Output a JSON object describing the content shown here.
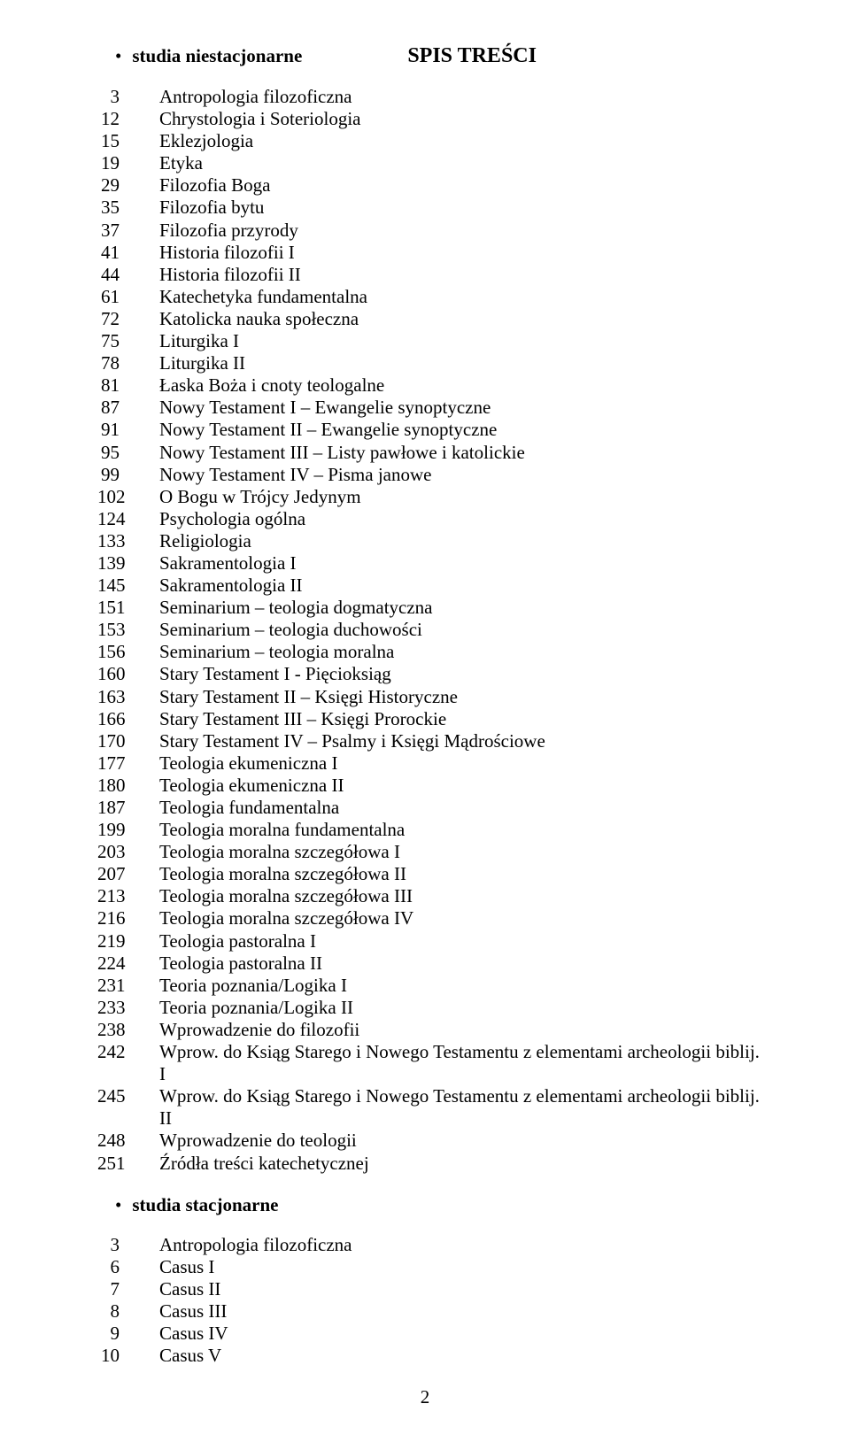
{
  "title": "SPIS TREŚCI",
  "section1_label": "studia niestacjonarne",
  "section2_label": "studia stacjonarne",
  "page_number": "2",
  "toc1": [
    {
      "num": "3",
      "title": "Antropologia filozoficzna"
    },
    {
      "num": "12",
      "title": "Chrystologia i Soteriologia"
    },
    {
      "num": "15",
      "title": "Eklezjologia"
    },
    {
      "num": "19",
      "title": "Etyka"
    },
    {
      "num": "29",
      "title": "Filozofia Boga"
    },
    {
      "num": "35",
      "title": "Filozofia bytu"
    },
    {
      "num": "37",
      "title": "Filozofia przyrody"
    },
    {
      "num": "41",
      "title": "Historia filozofii I"
    },
    {
      "num": "44",
      "title": "Historia filozofii II"
    },
    {
      "num": "61",
      "title": "Katechetyka fundamentalna"
    },
    {
      "num": "72",
      "title": "Katolicka nauka społeczna"
    },
    {
      "num": "75",
      "title": "Liturgika I"
    },
    {
      "num": "78",
      "title": "Liturgika II"
    },
    {
      "num": "81",
      "title": "Łaska Boża i cnoty teologalne"
    },
    {
      "num": "87",
      "title": "Nowy Testament I – Ewangelie synoptyczne"
    },
    {
      "num": "91",
      "title": "Nowy Testament II – Ewangelie synoptyczne"
    },
    {
      "num": "95",
      "title": "Nowy Testament III – Listy pawłowe i katolickie"
    },
    {
      "num": "99",
      "title": "Nowy Testament IV – Pisma janowe"
    },
    {
      "num": "102",
      "title": "O Bogu w Trójcy Jedynym"
    },
    {
      "num": "124",
      "title": "Psychologia ogólna"
    },
    {
      "num": "133",
      "title": "Religiologia"
    },
    {
      "num": "139",
      "title": "Sakramentologia I"
    },
    {
      "num": "145",
      "title": "Sakramentologia II"
    },
    {
      "num": "151",
      "title": "Seminarium – teologia dogmatyczna"
    },
    {
      "num": "153",
      "title": "Seminarium – teologia duchowości"
    },
    {
      "num": "156",
      "title": "Seminarium – teologia moralna"
    },
    {
      "num": "160",
      "title": "Stary Testament I - Pięcioksiąg"
    },
    {
      "num": "163",
      "title": "Stary Testament II – Księgi Historyczne"
    },
    {
      "num": "166",
      "title": "Stary Testament III – Księgi Prorockie"
    },
    {
      "num": "170",
      "title": "Stary Testament IV – Psalmy i Księgi Mądrościowe"
    },
    {
      "num": "177",
      "title": "Teologia ekumeniczna I"
    },
    {
      "num": "180",
      "title": "Teologia ekumeniczna II"
    },
    {
      "num": "187",
      "title": "Teologia fundamentalna"
    },
    {
      "num": "199",
      "title": "Teologia moralna fundamentalna"
    },
    {
      "num": "203",
      "title": "Teologia moralna szczegółowa I"
    },
    {
      "num": "207",
      "title": "Teologia moralna szczegółowa II"
    },
    {
      "num": "213",
      "title": "Teologia moralna szczegółowa III"
    },
    {
      "num": "216",
      "title": "Teologia moralna szczegółowa IV"
    },
    {
      "num": "219",
      "title": "Teologia pastoralna I"
    },
    {
      "num": "224",
      "title": "Teologia pastoralna II"
    },
    {
      "num": "231",
      "title": "Teoria poznania/Logika I"
    },
    {
      "num": "233",
      "title": "Teoria poznania/Logika II"
    },
    {
      "num": "238",
      "title": "Wprowadzenie do filozofii"
    },
    {
      "num": "242",
      "title": "Wprow. do Ksiąg Starego i Nowego Testamentu z elementami archeologii biblij. I"
    },
    {
      "num": "245",
      "title": "Wprow. do Ksiąg Starego i Nowego Testamentu z elementami archeologii biblij. II"
    },
    {
      "num": "248",
      "title": "Wprowadzenie do teologii"
    },
    {
      "num": "251",
      "title": "Źródła treści katechetycznej"
    }
  ],
  "toc2": [
    {
      "num": "3",
      "title": "Antropologia filozoficzna"
    },
    {
      "num": "6",
      "title": "Casus I"
    },
    {
      "num": "7",
      "title": "Casus II"
    },
    {
      "num": "8",
      "title": "Casus III"
    },
    {
      "num": "9",
      "title": "Casus IV"
    },
    {
      "num": "10",
      "title": "Casus V"
    }
  ]
}
